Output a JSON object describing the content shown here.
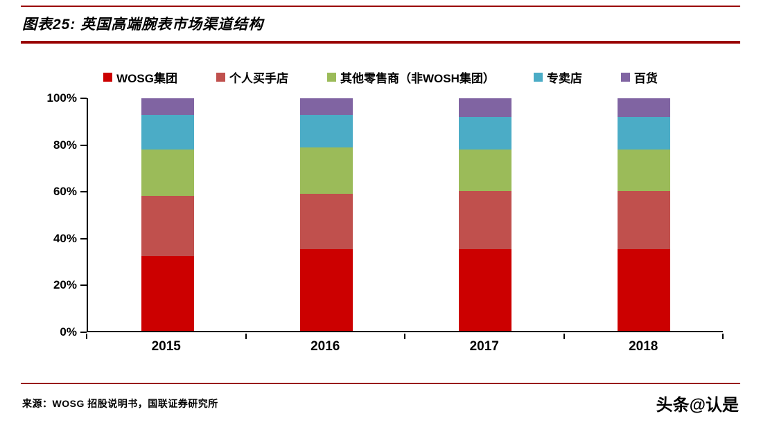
{
  "header": {
    "title": "图表25: 英国高端腕表市场渠道结构"
  },
  "footer": {
    "source": "来源：WOSG 招股说明书，国联证券研究所",
    "watermark": "头条@认是"
  },
  "colors": {
    "rule": "#990000",
    "axis": "#000000"
  },
  "chart_data": {
    "type": "bar",
    "stacked": true,
    "title": "图表25: 英国高端腕表市场渠道结构",
    "categories": [
      "2015",
      "2016",
      "2017",
      "2018"
    ],
    "series": [
      {
        "name": "WOSG集团",
        "color": "#CC0000",
        "values": [
          32,
          35,
          35,
          35
        ]
      },
      {
        "name": "个人买手店",
        "color": "#C0504D",
        "values": [
          26,
          24,
          25,
          25
        ]
      },
      {
        "name": "其他零售商（非WOSH集团）",
        "color": "#9BBB59",
        "values": [
          20,
          20,
          18,
          18
        ]
      },
      {
        "name": "专卖店",
        "color": "#4BACC6",
        "values": [
          15,
          14,
          14,
          14
        ]
      },
      {
        "name": "百货",
        "color": "#8064A2",
        "values": [
          7,
          7,
          8,
          8
        ]
      }
    ],
    "xlabel": "",
    "ylabel": "",
    "ylim": [
      0,
      100
    ],
    "yticks": [
      {
        "label": "0%",
        "value": 0
      },
      {
        "label": "20%",
        "value": 20
      },
      {
        "label": "40%",
        "value": 40
      },
      {
        "label": "60%",
        "value": 60
      },
      {
        "label": "80%",
        "value": 80
      },
      {
        "label": "100%",
        "value": 100
      }
    ],
    "grid": false,
    "legend_position": "top"
  }
}
